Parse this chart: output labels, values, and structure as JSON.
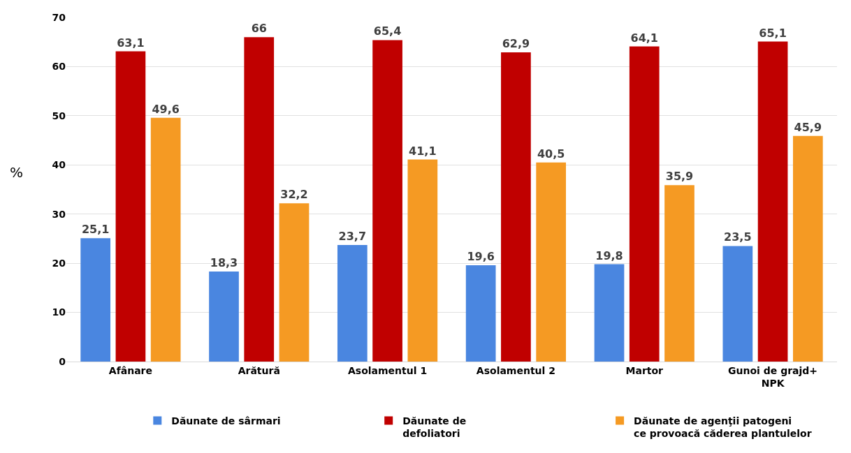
{
  "chart_data": {
    "type": "bar",
    "ylabel": "%",
    "categories": [
      "Afânare",
      "Arătură",
      "Asolamentul 1",
      "Asolamentul 2",
      "Martor",
      "Gunoi de grajd+\nNPK"
    ],
    "series": [
      {
        "name": "Dăunate de sârmari",
        "color": "#4a86e0",
        "values": [
          25.1,
          18.3,
          23.7,
          19.6,
          19.8,
          23.5
        ],
        "value_labels": [
          "25,1",
          "18,3",
          "23,7",
          "19,6",
          "19,8",
          "23,5"
        ]
      },
      {
        "name": "Dăunate de\ndefoliatori",
        "color": "#c00000",
        "values": [
          63.1,
          66,
          65.4,
          62.9,
          64.1,
          65.1
        ],
        "value_labels": [
          "63,1",
          "66",
          "65,4",
          "62,9",
          "64,1",
          "65,1"
        ]
      },
      {
        "name": "Dăunate de agenţii patogeni\nce provoacă căderea plantulelor",
        "color": "#f59a23",
        "values": [
          49.6,
          32.2,
          41.1,
          40.5,
          35.9,
          45.9
        ],
        "value_labels": [
          "49,6",
          "32,2",
          "41,1",
          "40,5",
          "35,9",
          "45,9"
        ]
      }
    ],
    "ylim": [
      0,
      70
    ],
    "yticks": [
      0,
      10,
      20,
      30,
      40,
      50,
      60,
      70
    ],
    "grid": "y",
    "legend": "bottom"
  }
}
